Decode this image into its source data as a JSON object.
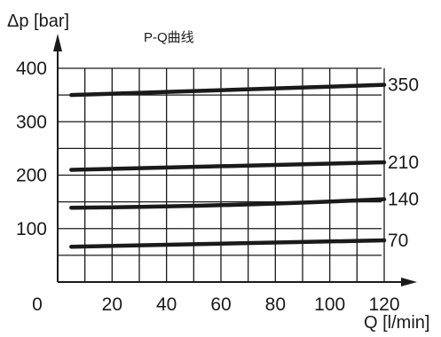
{
  "chart_data": {
    "type": "line",
    "title": "P-Q曲线",
    "ylabel": "Δp [bar]",
    "xlabel": "Q [l/min]",
    "xlim": [
      0,
      120
    ],
    "ylim": [
      0,
      400
    ],
    "x_ticks": [
      0,
      20,
      40,
      60,
      80,
      100,
      120
    ],
    "y_ticks": [
      100,
      200,
      300,
      400
    ],
    "x_tick_labels": [
      "0",
      "20",
      "40",
      "60",
      "80",
      "100",
      "120"
    ],
    "y_tick_labels": [
      "100",
      "200",
      "300",
      "400"
    ],
    "grid": true,
    "series": [
      {
        "name": "350",
        "x": [
          5,
          120
        ],
        "y": [
          350,
          369
        ]
      },
      {
        "name": "210",
        "x": [
          5,
          120
        ],
        "y": [
          210,
          224
        ]
      },
      {
        "name": "140",
        "x": [
          5,
          60,
          120
        ],
        "y": [
          139,
          141,
          155
        ]
      },
      {
        "name": "70",
        "x": [
          5,
          120
        ],
        "y": [
          66,
          78
        ]
      }
    ],
    "colors": {
      "line": "#1a1a1a"
    }
  }
}
